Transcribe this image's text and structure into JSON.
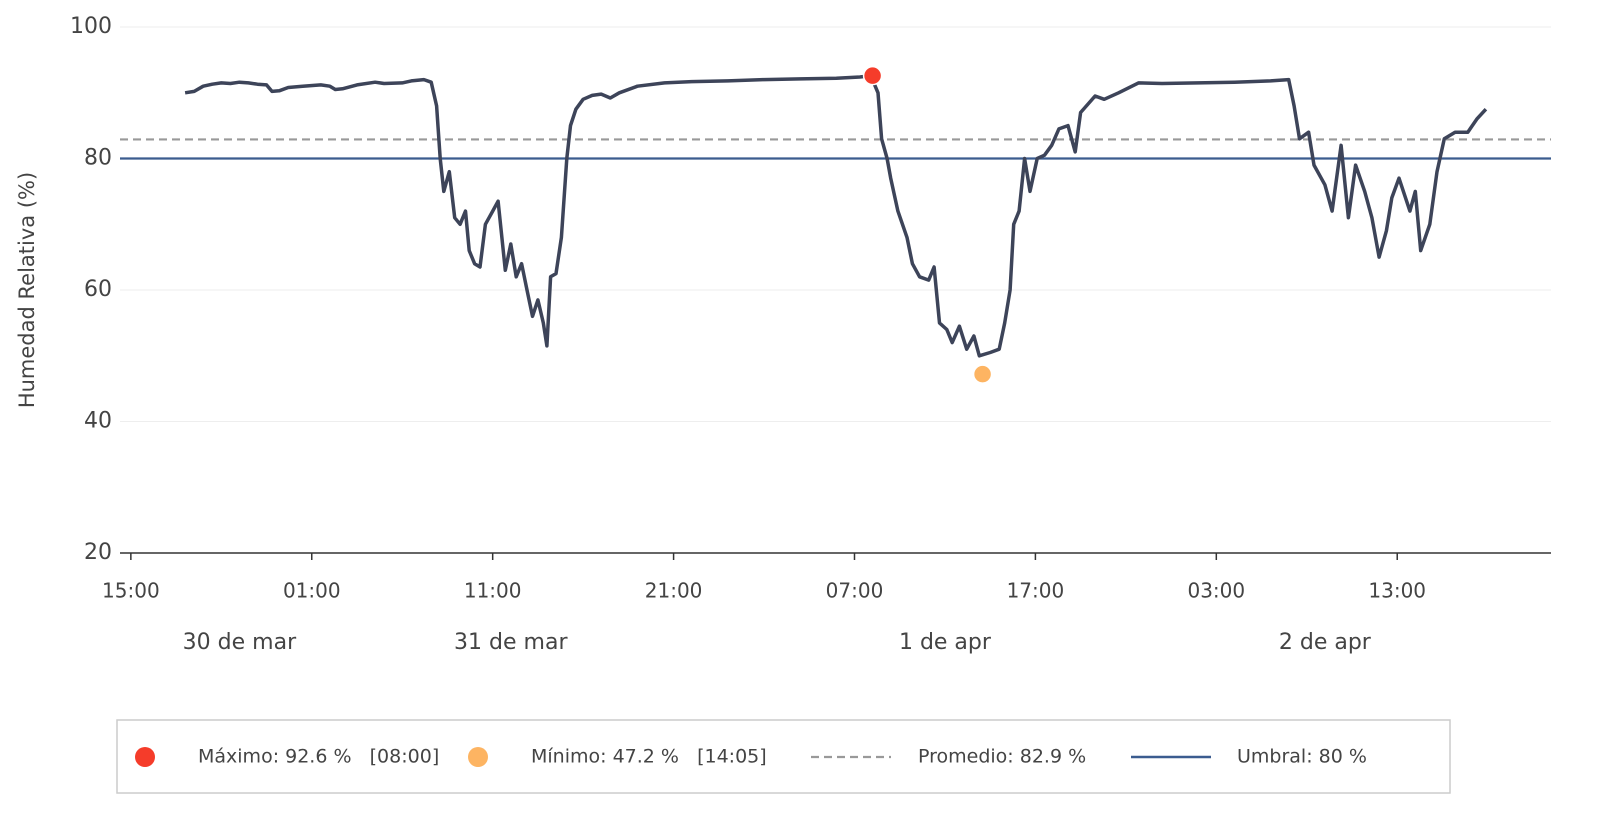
{
  "chart_data": {
    "type": "line",
    "y_label": "Humedad Relativa (%)",
    "xlim": [
      -0.6,
      78.5
    ],
    "xticks": [
      {
        "value": 0,
        "label": "15:00"
      },
      {
        "value": 10,
        "label": "01:00"
      },
      {
        "value": 20,
        "label": "11:00"
      },
      {
        "value": 30,
        "label": "21:00"
      },
      {
        "value": 40,
        "label": "07:00"
      },
      {
        "value": 50,
        "label": "17:00"
      },
      {
        "value": 60,
        "label": "03:00"
      },
      {
        "value": 70,
        "label": "13:00"
      }
    ],
    "date_labels": [
      {
        "value": 6,
        "label": "30 de mar"
      },
      {
        "value": 21,
        "label": "31 de mar"
      },
      {
        "value": 45,
        "label": "1 de apr"
      },
      {
        "value": 66,
        "label": "2 de apr"
      }
    ],
    "ylim": [
      20,
      100
    ],
    "yticks": [
      20,
      40,
      60,
      80,
      100
    ],
    "grid": true,
    "series": [
      {
        "color": "#3d4459",
        "x": [
          3,
          3.5,
          4,
          4.5,
          5,
          5.5,
          6,
          6.5,
          7,
          7.5,
          7.8,
          8.2,
          8.7,
          9.5,
          10.5,
          11,
          11.3,
          11.7,
          12.5,
          13.5,
          14,
          15,
          15.5,
          16.2,
          16.6,
          16.9,
          17.1,
          17.3,
          17.6,
          17.9,
          18.2,
          18.5,
          18.7,
          19,
          19.3,
          19.6,
          20,
          20.3,
          20.7,
          21,
          21.3,
          21.6,
          21.9,
          22.2,
          22.5,
          22.8,
          23,
          23.2,
          23.5,
          23.8,
          24.1,
          24.3,
          24.6,
          25,
          25.5,
          26,
          26.5,
          27,
          28,
          29.5,
          31,
          33,
          35,
          37,
          39,
          40.3,
          40.9,
          41.3,
          41.5,
          41.8,
          42,
          42.4,
          42.9,
          43.2,
          43.6,
          44.1,
          44.4,
          44.7,
          45.1,
          45.4,
          45.8,
          46.2,
          46.6,
          46.9,
          47.5,
          48,
          48.3,
          48.6,
          48.8,
          49.1,
          49.4,
          49.7,
          50.1,
          50.5,
          50.9,
          51.3,
          51.8,
          52.2,
          52.5,
          53.3,
          53.8,
          54.6,
          55.7,
          57,
          59,
          61,
          63,
          64,
          64.3,
          64.6,
          65.1,
          65.4,
          66,
          66.4,
          66.9,
          67.3,
          67.7,
          68.2,
          68.6,
          69,
          69.4,
          69.7,
          70.1,
          70.7,
          71,
          71.3,
          71.8,
          72.2,
          72.6,
          73.2,
          73.9,
          74.4,
          74.9
        ],
        "values": [
          90,
          90.2,
          91,
          91.3,
          91.5,
          91.4,
          91.6,
          91.5,
          91.3,
          91.2,
          90.2,
          90.3,
          90.8,
          91,
          91.2,
          91,
          90.5,
          90.6,
          91.2,
          91.6,
          91.4,
          91.5,
          91.8,
          92,
          91.6,
          88,
          80,
          75,
          78,
          71,
          70,
          72,
          66,
          64,
          63.5,
          70,
          72,
          73.5,
          63,
          67,
          62,
          64,
          60,
          56,
          58.5,
          55,
          51.5,
          62,
          62.5,
          68,
          80,
          85,
          87.5,
          89,
          89.6,
          89.8,
          89.2,
          90,
          91,
          91.5,
          91.7,
          91.8,
          92,
          92.1,
          92.2,
          92.4,
          92.6,
          90,
          83,
          80,
          77,
          72,
          68,
          64,
          62,
          61.5,
          63.5,
          55,
          54,
          52,
          54.5,
          51,
          53,
          50,
          50.5,
          51,
          55,
          60,
          70,
          72,
          80,
          75,
          80,
          80.5,
          82,
          84.5,
          85,
          81,
          87,
          89.5,
          89,
          90,
          91.5,
          91.4,
          91.5,
          91.6,
          91.8,
          92,
          88,
          83,
          84,
          79,
          76,
          72,
          82,
          71,
          79,
          75,
          71,
          65,
          69,
          74,
          77,
          72,
          75,
          66,
          70,
          78,
          83,
          84,
          84,
          86,
          87.5
        ]
      }
    ],
    "max": {
      "x": 41,
      "value": 92.6,
      "color": "#f53c2a",
      "label": "Máximo: 92.6 %   [08:00]"
    },
    "min": {
      "x": 47.08,
      "value": 47.2,
      "color": "#fdb462",
      "label": "Mínimo: 47.2 %   [14:05]"
    },
    "mean": {
      "value": 82.9,
      "color": "#999999",
      "label": "Promedio: 82.9 %"
    },
    "threshold": {
      "value": 80,
      "color": "#3b5c8f",
      "label": "Umbral: 80 %"
    }
  }
}
